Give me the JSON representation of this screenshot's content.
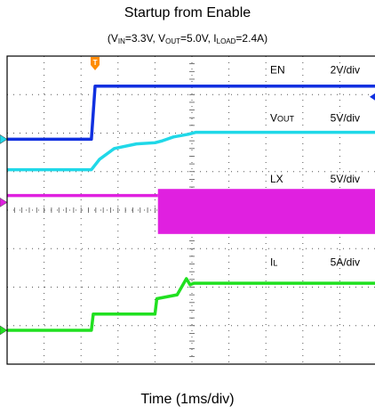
{
  "chart_data": {
    "type": "line",
    "title": "Startup from Enable",
    "subtitle": {
      "parts": [
        {
          "text": "(V"
        },
        {
          "text": "IN",
          "sub": true
        },
        {
          "text": "=3.3V, V"
        },
        {
          "text": "OUT",
          "sub": true
        },
        {
          "text": "=5.0V, I"
        },
        {
          "text": "LOAD",
          "sub": true
        },
        {
          "text": "=2.4A)"
        }
      ]
    },
    "xlabel": "Time (1ms/div)",
    "ylabel": "",
    "xlim": [
      0,
      10
    ],
    "ylim": [
      0,
      8
    ],
    "grid": true,
    "trigger_marker": "T",
    "series": [
      {
        "name": "EN",
        "scale": "2V/div",
        "color": "#1030e0",
        "ground_div": 5.84,
        "points": [
          [
            0,
            5.84
          ],
          [
            2.28,
            5.84
          ],
          [
            2.38,
            7.22
          ],
          [
            10,
            7.22
          ]
        ]
      },
      {
        "name": "VOUT",
        "scale": "5V/div",
        "color": "#20d8e8",
        "ground_div": 5.84,
        "points": [
          [
            0,
            5.05
          ],
          [
            2.28,
            5.05
          ],
          [
            2.5,
            5.32
          ],
          [
            2.9,
            5.6
          ],
          [
            3.5,
            5.72
          ],
          [
            4.0,
            5.75
          ],
          [
            4.2,
            5.8
          ],
          [
            4.5,
            5.9
          ],
          [
            4.9,
            5.97
          ],
          [
            5.1,
            6.02
          ],
          [
            10,
            6.02
          ]
        ]
      },
      {
        "name": "LX",
        "scale": "5V/div",
        "color": "#e020e0",
        "ground_div": 4.2,
        "points": [
          [
            0,
            4.38
          ],
          [
            4.08,
            4.38
          ]
        ],
        "switching": {
          "start": 4.08,
          "end": 10,
          "low": 3.38,
          "high": 4.55
        }
      },
      {
        "name": "IL",
        "scale": "5A/div",
        "color": "#20e020",
        "ground_div": 0.88,
        "points": [
          [
            0,
            0.88
          ],
          [
            2.28,
            0.88
          ],
          [
            2.33,
            1.3
          ],
          [
            4.0,
            1.3
          ],
          [
            4.05,
            1.7
          ],
          [
            4.6,
            1.8
          ],
          [
            4.85,
            2.22
          ],
          [
            4.95,
            2.06
          ],
          [
            5.05,
            2.1
          ],
          [
            10,
            2.1
          ]
        ]
      }
    ],
    "annotations": [
      {
        "label": "EN",
        "sub": "",
        "scale": "2V/div",
        "y_div": 7.55
      },
      {
        "label": "V",
        "sub": "OUT",
        "scale": "5V/div",
        "y_div": 6.3
      },
      {
        "label": "LX",
        "sub": "",
        "scale": "5V/div",
        "y_div": 4.72
      },
      {
        "label": "I",
        "sub": "L",
        "scale": "5A/div",
        "y_div": 2.55
      }
    ]
  }
}
